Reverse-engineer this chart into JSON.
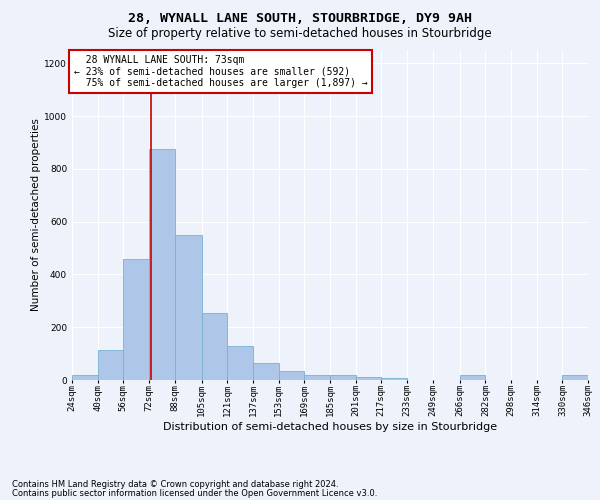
{
  "title": "28, WYNALL LANE SOUTH, STOURBRIDGE, DY9 9AH",
  "subtitle": "Size of property relative to semi-detached houses in Stourbridge",
  "xlabel": "Distribution of semi-detached houses by size in Stourbridge",
  "ylabel": "Number of semi-detached properties",
  "footnote1": "Contains HM Land Registry data © Crown copyright and database right 2024.",
  "footnote2": "Contains public sector information licensed under the Open Government Licence v3.0.",
  "property_size": 73,
  "property_label": "28 WYNALL LANE SOUTH: 73sqm",
  "pct_smaller": 23,
  "count_smaller": 592,
  "pct_larger": 75,
  "count_larger": 1897,
  "bin_edges": [
    24,
    40,
    56,
    72,
    88,
    105,
    121,
    137,
    153,
    169,
    185,
    201,
    217,
    233,
    249,
    266,
    282,
    298,
    314,
    330,
    346
  ],
  "bin_labels": [
    "24sqm",
    "40sqm",
    "56sqm",
    "72sqm",
    "88sqm",
    "105sqm",
    "121sqm",
    "137sqm",
    "153sqm",
    "169sqm",
    "185sqm",
    "201sqm",
    "217sqm",
    "233sqm",
    "249sqm",
    "266sqm",
    "282sqm",
    "298sqm",
    "314sqm",
    "330sqm",
    "346sqm"
  ],
  "bar_heights": [
    20,
    115,
    460,
    875,
    550,
    255,
    130,
    65,
    35,
    20,
    18,
    12,
    8,
    0,
    0,
    18,
    0,
    0,
    0,
    18
  ],
  "bar_color": "#aec6e8",
  "bar_edge_color": "#7aafd4",
  "annotation_box_color": "#ffffff",
  "annotation_box_edge": "#cc0000",
  "vline_color": "#cc0000",
  "ylim": [
    0,
    1250
  ],
  "yticks": [
    0,
    200,
    400,
    600,
    800,
    1000,
    1200
  ],
  "background_color": "#eef2fa",
  "grid_color": "#ffffff",
  "title_fontsize": 9.5,
  "subtitle_fontsize": 8.5,
  "ylabel_fontsize": 7.5,
  "xlabel_fontsize": 8,
  "tick_fontsize": 6.5,
  "annotation_fontsize": 7,
  "footnote_fontsize": 6
}
